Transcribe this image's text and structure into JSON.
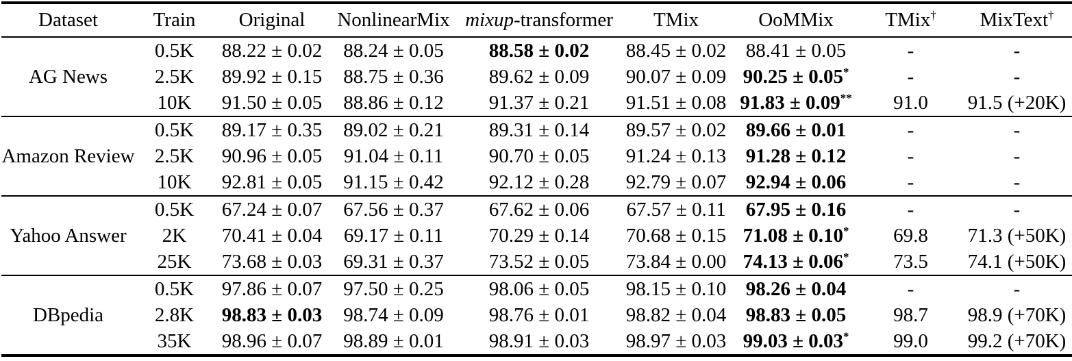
{
  "colors": {
    "background": "#ffffff",
    "text": "#000000",
    "rule": "#000000"
  },
  "table": {
    "headers": [
      {
        "label": "Dataset"
      },
      {
        "label": "Train"
      },
      {
        "label": "Original"
      },
      {
        "label": "NonlinearMix"
      },
      {
        "label_italic": "mixup",
        "label": "-transformer"
      },
      {
        "label": "TMix"
      },
      {
        "label": "OoMMix"
      },
      {
        "label": "TMix",
        "sup": "†"
      },
      {
        "label": "MixText",
        "sup": "†"
      }
    ],
    "groups": [
      {
        "dataset": "AG News",
        "rows": [
          {
            "train": "0.5K",
            "cells": [
              {
                "text": "88.22 ± 0.02"
              },
              {
                "text": "88.24 ± 0.05"
              },
              {
                "text": "88.58 ± 0.02",
                "bold": true
              },
              {
                "text": "88.45 ± 0.02"
              },
              {
                "text": "88.41 ± 0.05"
              },
              {
                "text": "-"
              },
              {
                "text": "-"
              }
            ]
          },
          {
            "train": "2.5K",
            "cells": [
              {
                "text": "89.92 ± 0.15"
              },
              {
                "text": "88.75 ± 0.36"
              },
              {
                "text": "89.62 ± 0.09"
              },
              {
                "text": "90.07 ± 0.09"
              },
              {
                "text": "90.25 ± 0.05",
                "bold": true,
                "sup": "*"
              },
              {
                "text": "-"
              },
              {
                "text": "-"
              }
            ]
          },
          {
            "train": "10K",
            "cells": [
              {
                "text": "91.50 ± 0.05"
              },
              {
                "text": "88.86 ± 0.12"
              },
              {
                "text": "91.37 ± 0.21"
              },
              {
                "text": "91.51 ± 0.08"
              },
              {
                "text": "91.83 ± 0.09",
                "bold": true,
                "sup": "**"
              },
              {
                "text": "91.0"
              },
              {
                "text": "91.5 (+20K)"
              }
            ]
          }
        ]
      },
      {
        "dataset": "Amazon Review",
        "rows": [
          {
            "train": "0.5K",
            "cells": [
              {
                "text": "89.17 ± 0.35"
              },
              {
                "text": "89.02 ± 0.21"
              },
              {
                "text": "89.31 ± 0.14"
              },
              {
                "text": "89.57 ± 0.02"
              },
              {
                "text": "89.66 ± 0.01",
                "bold": true
              },
              {
                "text": "-"
              },
              {
                "text": "-"
              }
            ]
          },
          {
            "train": "2.5K",
            "cells": [
              {
                "text": "90.96 ± 0.05"
              },
              {
                "text": "91.04 ± 0.11"
              },
              {
                "text": "90.70 ± 0.05"
              },
              {
                "text": "91.24 ± 0.13"
              },
              {
                "text": "91.28 ± 0.12",
                "bold": true
              },
              {
                "text": "-"
              },
              {
                "text": "-"
              }
            ]
          },
          {
            "train": "10K",
            "cells": [
              {
                "text": "92.81 ± 0.05"
              },
              {
                "text": "91.15 ± 0.42"
              },
              {
                "text": "92.12 ± 0.28"
              },
              {
                "text": "92.79 ± 0.07"
              },
              {
                "text": "92.94 ± 0.06",
                "bold": true
              },
              {
                "text": "-"
              },
              {
                "text": "-"
              }
            ]
          }
        ]
      },
      {
        "dataset": "Yahoo Answer",
        "rows": [
          {
            "train": "0.5K",
            "cells": [
              {
                "text": "67.24 ± 0.07"
              },
              {
                "text": "67.56 ± 0.37"
              },
              {
                "text": "67.62 ± 0.06"
              },
              {
                "text": "67.57 ± 0.11"
              },
              {
                "text": "67.95 ± 0.16",
                "bold": true
              },
              {
                "text": "-"
              },
              {
                "text": "-"
              }
            ]
          },
          {
            "train": "2K",
            "cells": [
              {
                "text": "70.41 ± 0.04"
              },
              {
                "text": "69.17 ± 0.11"
              },
              {
                "text": "70.29 ± 0.14"
              },
              {
                "text": "70.68 ± 0.15"
              },
              {
                "text": "71.08 ± 0.10",
                "bold": true,
                "sup": "*"
              },
              {
                "text": "69.8"
              },
              {
                "text": "71.3 (+50K)"
              }
            ]
          },
          {
            "train": "25K",
            "cells": [
              {
                "text": "73.68 ± 0.03"
              },
              {
                "text": "69.31 ± 0.37"
              },
              {
                "text": "73.52 ± 0.05"
              },
              {
                "text": "73.84 ± 0.00"
              },
              {
                "text": "74.13 ± 0.06",
                "bold": true,
                "sup": "*"
              },
              {
                "text": "73.5"
              },
              {
                "text": "74.1 (+50K)"
              }
            ]
          }
        ]
      },
      {
        "dataset": "DBpedia",
        "rows": [
          {
            "train": "0.5K",
            "cells": [
              {
                "text": "97.86 ± 0.07"
              },
              {
                "text": "97.50 ± 0.25"
              },
              {
                "text": "98.06 ± 0.05"
              },
              {
                "text": "98.15 ± 0.10"
              },
              {
                "text": "98.26 ± 0.04",
                "bold": true
              },
              {
                "text": "-"
              },
              {
                "text": "-"
              }
            ]
          },
          {
            "train": "2.8K",
            "cells": [
              {
                "text": "98.83 ± 0.03",
                "bold": true
              },
              {
                "text": "98.74 ± 0.09"
              },
              {
                "text": "98.76 ± 0.01"
              },
              {
                "text": "98.82 ± 0.04"
              },
              {
                "text": "98.83 ± 0.05",
                "bold": true
              },
              {
                "text": "98.7"
              },
              {
                "text": "98.9 (+70K)"
              }
            ]
          },
          {
            "train": "35K",
            "cells": [
              {
                "text": "98.96 ± 0.07"
              },
              {
                "text": "98.89 ± 0.01"
              },
              {
                "text": "98.91 ± 0.03"
              },
              {
                "text": "98.97 ± 0.03"
              },
              {
                "text": "99.03 ± 0.03",
                "bold": true,
                "sup": "*"
              },
              {
                "text": "99.0"
              },
              {
                "text": "99.2 (+70K)"
              }
            ]
          }
        ]
      }
    ]
  }
}
